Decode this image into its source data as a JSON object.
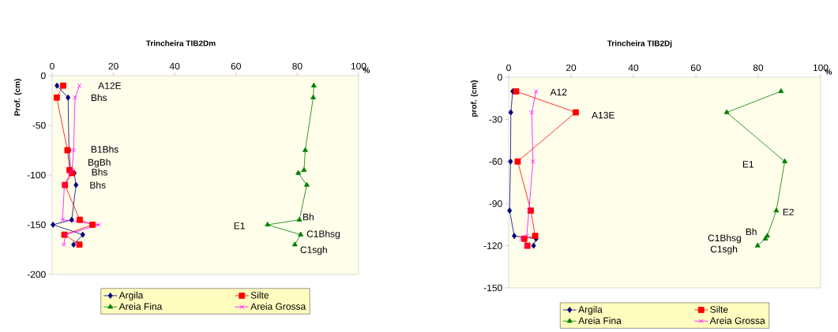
{
  "chart_data": [
    {
      "type": "line",
      "title": "Trincheira TIB2Dm",
      "xlabel": "%",
      "ylabel": "Prof. (cm)",
      "xlim": [
        0,
        100
      ],
      "xticks": [
        0,
        20,
        40,
        60,
        80,
        100
      ],
      "ylim": [
        -200,
        0
      ],
      "yticks": [
        -200,
        -150,
        -100,
        -50,
        0
      ],
      "legend": "bottom",
      "grid": false,
      "series": [
        {
          "name": "Argila",
          "color": "#000080",
          "marker": "diamond",
          "x": [
            1.6,
            5.2,
            5.5,
            6,
            7.2,
            7.8,
            6.4,
            0.3,
            10,
            7
          ],
          "values": [
            -10,
            -22,
            -75,
            -95,
            -98,
            -110,
            -145,
            -150,
            -160,
            -170
          ]
        },
        {
          "name": "Silte",
          "color": "#ff0000",
          "marker": "square",
          "x": [
            3.6,
            1.5,
            5,
            5.7,
            6.5,
            4.2,
            9,
            13.2,
            4,
            8.9
          ],
          "values": [
            -10,
            -22,
            -75,
            -95,
            -98,
            -110,
            -145,
            -150,
            -160,
            -170
          ]
        },
        {
          "name": "Areia Fina",
          "color": "#008000",
          "marker": "triangle",
          "x": [
            85.4,
            85.2,
            82.6,
            82.2,
            80.3,
            83.1,
            80.7,
            70.3,
            81.1,
            79.2
          ],
          "values": [
            -10,
            -22,
            -75,
            -95,
            -98,
            -110,
            -145,
            -150,
            -160,
            -170
          ]
        },
        {
          "name": "Areia Grossa",
          "color": "#ff00ff",
          "marker": "cross",
          "x": [
            8.9,
            7.5,
            7,
            6.5,
            5.9,
            4,
            3.4,
            15.2,
            4.4,
            3.8
          ],
          "values": [
            -10,
            -22,
            -75,
            -95,
            -98,
            -110,
            -145,
            -150,
            -160,
            -170
          ]
        }
      ],
      "annotations": [
        "A12E",
        "Bhs",
        "B1Bhs",
        "BgBh",
        "Bhs",
        "Bhs",
        "Bh",
        "E1",
        "C1Bhsg",
        "C1sgh"
      ]
    },
    {
      "type": "line",
      "title": "Trincheira TIB2Dj",
      "xlabel": "%",
      "ylabel": "prof. (cm)",
      "xlim": [
        0,
        100
      ],
      "xticks": [
        0,
        20,
        40,
        60,
        80,
        100
      ],
      "ylim": [
        -150,
        0
      ],
      "yticks": [
        -150,
        -120,
        -90,
        -60,
        -30,
        0
      ],
      "legend": "bottom",
      "grid": false,
      "series": [
        {
          "name": "Argila",
          "color": "#000080",
          "marker": "diamond",
          "x": [
            1.3,
            0.7,
            0.6,
            0.3,
            1.8,
            8.8,
            8
          ],
          "values": [
            -10,
            -25,
            -60,
            -95,
            -113,
            -115,
            -120
          ]
        },
        {
          "name": "Silte",
          "color": "#ff0000",
          "marker": "square",
          "x": [
            2.4,
            21.5,
            2.9,
            7.1,
            8.5,
            5,
            6
          ],
          "values": [
            -10,
            -25,
            -60,
            -95,
            -113,
            -115,
            -120
          ]
        },
        {
          "name": "Areia Fina",
          "color": "#008000",
          "marker": "triangle",
          "x": [
            87.3,
            69.9,
            88.5,
            85.8,
            82.9,
            82.3,
            79.8
          ],
          "values": [
            -10,
            -25,
            -60,
            -95,
            -113,
            -115,
            -120
          ]
        },
        {
          "name": "Areia Grossa",
          "color": "#ff00ff",
          "marker": "cross",
          "x": [
            8.8,
            7.4,
            7.8,
            6.5,
            5.8,
            4.1,
            5.8
          ],
          "values": [
            -10,
            -25,
            -60,
            -95,
            -113,
            -115,
            -120
          ]
        }
      ],
      "annotations": [
        "A12",
        "A13E",
        "E1",
        "E2",
        "Bh",
        "C1Bhsg",
        "C1sgh"
      ]
    }
  ]
}
